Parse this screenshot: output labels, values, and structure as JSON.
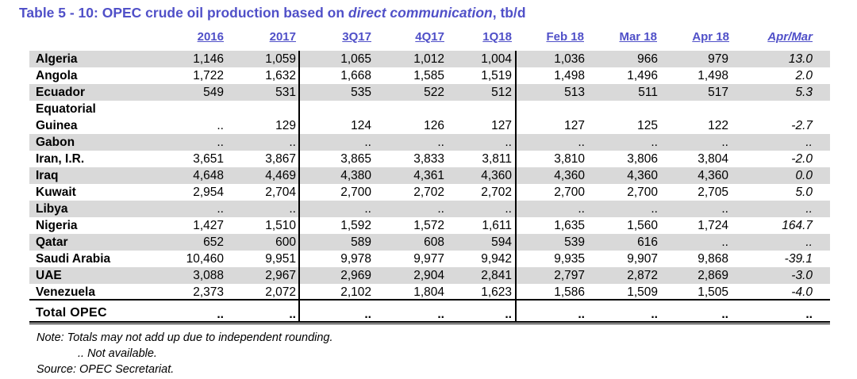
{
  "title": {
    "prefix": "Table 5 - 10: OPEC crude oil production based on ",
    "emphasis": "direct communication",
    "suffix": ", tb/d"
  },
  "columns": [
    "2016",
    "2017",
    "3Q17",
    "4Q17",
    "1Q18",
    "Feb 18",
    "Mar 18",
    "Apr 18",
    "Apr/Mar"
  ],
  "rows": [
    {
      "country": "Algeria",
      "values": [
        "1,146",
        "1,059",
        "1,065",
        "1,012",
        "1,004",
        "1,036",
        "966",
        "979",
        "13.0"
      ]
    },
    {
      "country": "Angola",
      "values": [
        "1,722",
        "1,632",
        "1,668",
        "1,585",
        "1,519",
        "1,498",
        "1,496",
        "1,498",
        "2.0"
      ]
    },
    {
      "country": "Ecuador",
      "values": [
        "549",
        "531",
        "535",
        "522",
        "512",
        "513",
        "511",
        "517",
        "5.3"
      ]
    },
    {
      "country": "Equatorial\nGuinea",
      "values": [
        "..",
        "129",
        "124",
        "126",
        "127",
        "127",
        "125",
        "122",
        "-2.7"
      ]
    },
    {
      "country": "Gabon",
      "values": [
        "..",
        "..",
        "..",
        "..",
        "..",
        "..",
        "..",
        "..",
        ".."
      ]
    },
    {
      "country": "Iran, I.R.",
      "values": [
        "3,651",
        "3,867",
        "3,865",
        "3,833",
        "3,811",
        "3,810",
        "3,806",
        "3,804",
        "-2.0"
      ]
    },
    {
      "country": "Iraq",
      "values": [
        "4,648",
        "4,469",
        "4,380",
        "4,361",
        "4,360",
        "4,360",
        "4,360",
        "4,360",
        "0.0"
      ]
    },
    {
      "country": "Kuwait",
      "values": [
        "2,954",
        "2,704",
        "2,700",
        "2,702",
        "2,702",
        "2,700",
        "2,700",
        "2,705",
        "5.0"
      ]
    },
    {
      "country": "Libya",
      "values": [
        "..",
        "..",
        "..",
        "..",
        "..",
        "..",
        "..",
        "..",
        ".."
      ]
    },
    {
      "country": "Nigeria",
      "values": [
        "1,427",
        "1,510",
        "1,592",
        "1,572",
        "1,611",
        "1,635",
        "1,560",
        "1,724",
        "164.7"
      ]
    },
    {
      "country": "Qatar",
      "values": [
        "652",
        "600",
        "589",
        "608",
        "594",
        "539",
        "616",
        "..",
        ".."
      ]
    },
    {
      "country": "Saudi Arabia",
      "values": [
        "10,460",
        "9,951",
        "9,978",
        "9,977",
        "9,942",
        "9,935",
        "9,907",
        "9,868",
        "-39.1"
      ]
    },
    {
      "country": "UAE",
      "values": [
        "3,088",
        "2,967",
        "2,969",
        "2,904",
        "2,841",
        "2,797",
        "2,872",
        "2,869",
        "-3.0"
      ]
    },
    {
      "country": "Venezuela",
      "values": [
        "2,373",
        "2,072",
        "2,102",
        "1,804",
        "1,623",
        "1,586",
        "1,509",
        "1,505",
        "-4.0"
      ]
    }
  ],
  "total": {
    "label": "Total  OPEC",
    "values": [
      "..",
      "..",
      "..",
      "..",
      "..",
      "..",
      "..",
      "..",
      ".."
    ]
  },
  "notes": [
    "Note: Totals may not add up due to independent rounding.",
    "        .. Not available.",
    "Source: OPEC Secretariat."
  ]
}
